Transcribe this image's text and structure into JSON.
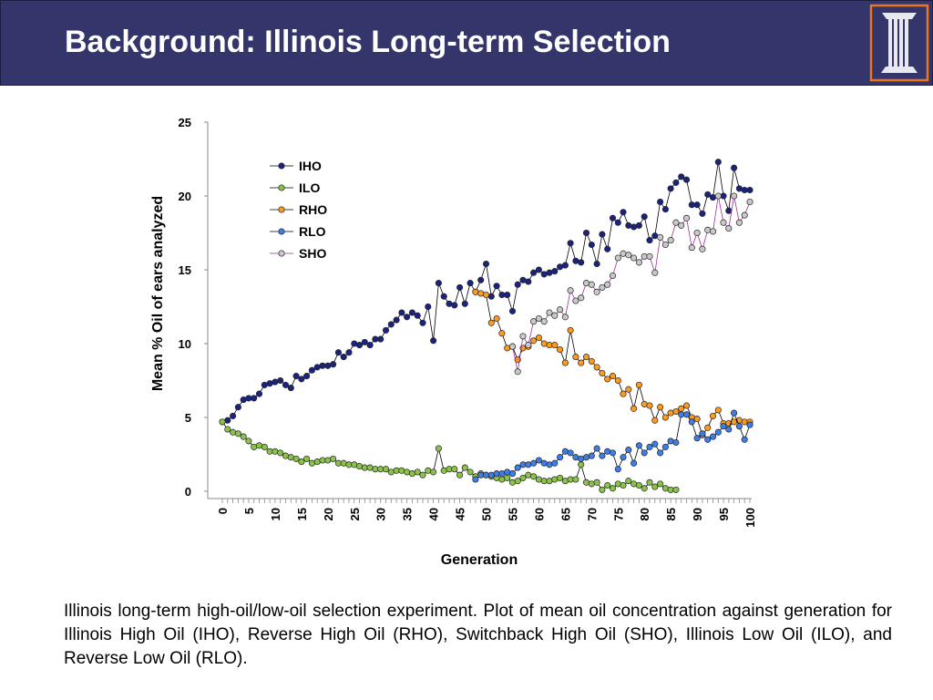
{
  "header": {
    "title": "Background: Illinois Long-term Selection",
    "logo": "university-of-illinois-column-logo"
  },
  "colors": {
    "header_bg": "#33356b",
    "logo_border": "#e87722",
    "IHO": "#1a237e",
    "ILO": "#8bc34a",
    "RHO": "#ff9a1f",
    "RLO": "#3d7ee8",
    "SHO": "#c9c9c9"
  },
  "chart_data": {
    "type": "line",
    "xlabel": "Generation",
    "ylabel": "Mean % Oil of ears analyzed",
    "xlim": [
      0,
      100
    ],
    "ylim": [
      0,
      25
    ],
    "yticks": [
      0,
      5,
      10,
      15,
      20,
      25
    ],
    "xticks": [
      0,
      5,
      10,
      15,
      20,
      25,
      30,
      35,
      40,
      45,
      50,
      55,
      60,
      65,
      70,
      75,
      80,
      85,
      90,
      95,
      100
    ],
    "legend_position": "top-left",
    "grid": false,
    "series": [
      {
        "name": "IHO",
        "x": [
          0,
          1,
          2,
          3,
          4,
          5,
          6,
          7,
          8,
          9,
          10,
          11,
          12,
          13,
          14,
          15,
          16,
          17,
          18,
          19,
          20,
          21,
          22,
          23,
          24,
          25,
          26,
          27,
          28,
          29,
          30,
          31,
          32,
          33,
          34,
          35,
          36,
          37,
          38,
          39,
          40,
          41,
          42,
          43,
          44,
          45,
          46,
          47,
          48,
          49,
          50,
          51,
          52,
          53,
          54,
          55,
          56,
          57,
          58,
          59,
          60,
          61,
          62,
          63,
          64,
          65,
          66,
          67,
          68,
          69,
          70,
          71,
          72,
          73,
          74,
          75,
          76,
          77,
          78,
          79,
          80,
          81,
          82,
          83,
          84,
          85,
          86,
          87,
          88,
          89,
          90,
          91,
          92,
          93,
          94,
          95,
          96,
          97,
          98,
          99,
          100
        ],
        "values": [
          4.7,
          4.8,
          5.1,
          5.7,
          6.2,
          6.3,
          6.3,
          6.6,
          7.2,
          7.3,
          7.4,
          7.5,
          7.2,
          7.0,
          7.8,
          7.6,
          7.8,
          8.2,
          8.4,
          8.5,
          8.5,
          8.6,
          9.4,
          9.1,
          9.4,
          10.0,
          9.9,
          10.1,
          9.9,
          10.3,
          10.3,
          10.9,
          11.3,
          11.6,
          12.1,
          11.8,
          12.1,
          11.9,
          11.4,
          12.5,
          10.2,
          14.1,
          13.2,
          12.7,
          12.6,
          13.8,
          12.7,
          14.1,
          13.5,
          14.3,
          15.4,
          13.2,
          13.9,
          13.3,
          13.3,
          12.2,
          14.0,
          14.3,
          14.2,
          14.8,
          15.0,
          14.7,
          14.8,
          14.9,
          15.2,
          15.3,
          16.8,
          15.6,
          15.5,
          17.5,
          16.7,
          15.4,
          17.4,
          16.4,
          18.5,
          18.2,
          18.9,
          18.0,
          17.9,
          18.0,
          18.6,
          17.0,
          17.3,
          19.6,
          19.1,
          20.5,
          20.9,
          21.3,
          21.1,
          19.4,
          19.4,
          18.8,
          20.1,
          19.9,
          22.3,
          20.0,
          19.0,
          21.9,
          20.5,
          20.4,
          20.4
        ]
      },
      {
        "name": "ILO",
        "x": [
          0,
          1,
          2,
          3,
          4,
          5,
          6,
          7,
          8,
          9,
          10,
          11,
          12,
          13,
          14,
          15,
          16,
          17,
          18,
          19,
          20,
          21,
          22,
          23,
          24,
          25,
          26,
          27,
          28,
          29,
          30,
          31,
          32,
          33,
          34,
          35,
          36,
          37,
          38,
          39,
          40,
          41,
          42,
          43,
          44,
          45,
          46,
          47,
          48,
          49,
          50,
          51,
          52,
          53,
          54,
          55,
          56,
          57,
          58,
          59,
          60,
          61,
          62,
          63,
          64,
          65,
          66,
          67,
          68,
          69,
          70,
          71,
          72,
          73,
          74,
          75,
          76,
          77,
          78,
          79,
          80,
          81,
          82,
          83,
          84,
          85,
          86
        ],
        "values": [
          4.7,
          4.2,
          4.0,
          3.9,
          3.7,
          3.4,
          3.0,
          3.1,
          3.0,
          2.7,
          2.7,
          2.6,
          2.4,
          2.3,
          2.2,
          2.0,
          2.2,
          1.9,
          2.0,
          2.1,
          2.1,
          2.2,
          1.9,
          1.9,
          1.8,
          1.8,
          1.7,
          1.6,
          1.6,
          1.5,
          1.5,
          1.5,
          1.3,
          1.4,
          1.4,
          1.3,
          1.2,
          1.3,
          1.1,
          1.4,
          1.3,
          2.9,
          1.4,
          1.5,
          1.5,
          1.1,
          1.6,
          1.3,
          1.0,
          1.2,
          1.1,
          1.0,
          0.9,
          0.8,
          0.9,
          0.6,
          0.7,
          0.9,
          1.1,
          1.0,
          0.8,
          0.7,
          0.7,
          0.8,
          0.9,
          0.7,
          0.8,
          0.8,
          1.8,
          0.6,
          0.5,
          0.6,
          0.1,
          0.4,
          0.2,
          0.5,
          0.4,
          0.7,
          0.5,
          0.4,
          0.2,
          0.6,
          0.3,
          0.5,
          0.2,
          0.1,
          0.1
        ]
      },
      {
        "name": "RHO",
        "x": [
          48,
          49,
          50,
          51,
          52,
          53,
          54,
          55,
          56,
          57,
          58,
          59,
          60,
          61,
          62,
          63,
          64,
          65,
          66,
          67,
          68,
          69,
          70,
          71,
          72,
          73,
          74,
          75,
          76,
          77,
          78,
          79,
          80,
          81,
          82,
          83,
          84,
          85,
          86,
          87,
          88,
          89,
          90,
          91,
          92,
          93,
          94,
          95,
          96,
          97,
          98,
          99,
          100
        ],
        "values": [
          13.5,
          13.4,
          13.3,
          11.4,
          11.7,
          10.7,
          9.7,
          9.8,
          8.9,
          9.7,
          9.8,
          10.2,
          10.4,
          10.0,
          9.9,
          9.9,
          9.6,
          8.7,
          10.9,
          9.1,
          8.7,
          9.1,
          8.8,
          8.4,
          8.0,
          7.6,
          7.8,
          7.5,
          6.6,
          6.9,
          5.6,
          7.2,
          5.9,
          5.8,
          4.8,
          5.7,
          5.0,
          5.3,
          5.4,
          5.6,
          5.8,
          5.0,
          4.9,
          3.8,
          4.3,
          5.1,
          5.5,
          4.6,
          4.6,
          4.7,
          4.8,
          4.7,
          4.7
        ]
      },
      {
        "name": "RLO",
        "x": [
          48,
          49,
          50,
          51,
          52,
          53,
          54,
          55,
          56,
          57,
          58,
          59,
          60,
          61,
          62,
          63,
          64,
          65,
          66,
          67,
          68,
          69,
          70,
          71,
          72,
          73,
          74,
          75,
          76,
          77,
          78,
          79,
          80,
          81,
          82,
          83,
          84,
          85,
          86,
          87,
          88,
          89,
          90,
          91,
          92,
          93,
          94,
          95,
          96,
          97,
          98,
          99,
          100
        ],
        "values": [
          0.8,
          1.1,
          1.1,
          1.1,
          1.2,
          1.2,
          1.3,
          1.2,
          1.6,
          1.8,
          1.8,
          1.9,
          2.1,
          1.9,
          1.8,
          1.9,
          2.3,
          2.7,
          2.6,
          2.3,
          2.2,
          2.3,
          2.4,
          2.9,
          2.4,
          2.7,
          2.6,
          1.5,
          2.3,
          2.8,
          1.9,
          3.1,
          2.6,
          3.0,
          3.2,
          2.6,
          3.0,
          3.4,
          3.3,
          5.2,
          5.2,
          4.7,
          3.6,
          3.9,
          3.5,
          3.7,
          4.0,
          4.4,
          4.2,
          5.3,
          4.4,
          3.5,
          4.5
        ]
      },
      {
        "name": "SHO",
        "x": [
          55,
          56,
          57,
          58,
          59,
          60,
          61,
          62,
          63,
          64,
          65,
          66,
          67,
          68,
          69,
          70,
          71,
          72,
          73,
          74,
          75,
          76,
          77,
          78,
          79,
          80,
          81,
          82,
          83,
          84,
          85,
          86,
          87,
          88,
          89,
          90,
          91,
          92,
          93,
          94,
          95,
          96,
          97,
          98,
          99,
          100
        ],
        "values": [
          9.8,
          8.1,
          10.5,
          9.9,
          11.5,
          11.7,
          11.5,
          12.1,
          11.9,
          12.3,
          11.8,
          13.6,
          12.9,
          13.1,
          14.1,
          14.0,
          13.5,
          13.8,
          14.0,
          14.6,
          15.8,
          16.1,
          16.0,
          15.8,
          15.5,
          15.9,
          15.9,
          14.8,
          17.2,
          16.7,
          17.0,
          18.2,
          18.0,
          18.5,
          16.5,
          17.5,
          16.4,
          17.7,
          17.6,
          20.0,
          18.2,
          17.8,
          20.0,
          18.2,
          18.7,
          19.6
        ]
      }
    ]
  },
  "caption": "Illinois long-term high-oil/low-oil selection experiment. Plot of mean oil concentration against generation for Illinois High Oil (IHO), Reverse High Oil (RHO), Switchback High Oil (SHO), Illinois Low Oil (ILO), and Reverse Low Oil (RLO)."
}
